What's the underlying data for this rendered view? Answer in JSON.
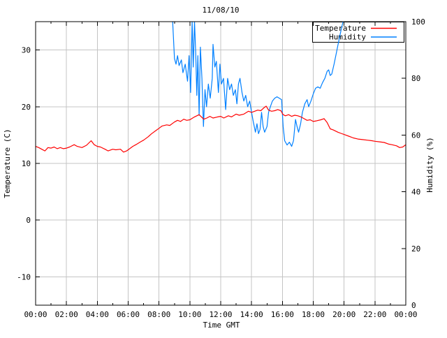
{
  "title": "11/08/10",
  "axes": {
    "x_label": "Time GMT",
    "y_left_label": "Temperature (C)",
    "y_right_label": "Humidity (%)",
    "x_tick_labels": [
      "00:00",
      "02:00",
      "04:00",
      "06:00",
      "08:00",
      "10:00",
      "12:00",
      "14:00",
      "16:00",
      "18:00",
      "20:00",
      "22:00",
      "00:00"
    ],
    "x_major_step_hours": 2,
    "x_minor_step_hours": 1,
    "y_left_ticks": [
      -10,
      0,
      10,
      20,
      30
    ],
    "y_right_ticks": [
      0,
      20,
      40,
      60,
      80,
      100
    ],
    "x_range_hours": [
      0,
      24
    ],
    "y_left_range": [
      -15,
      35
    ],
    "y_right_range": [
      0,
      100
    ],
    "grid": true,
    "legend_position": "top-right-inside-boxed"
  },
  "legend": {
    "entries": [
      {
        "label": "Temperature",
        "color": "#ff0000"
      },
      {
        "label": "Humidity",
        "color": "#0080ff"
      }
    ]
  },
  "colors": {
    "background": "#ffffff",
    "border": "#000000",
    "grid": "#c4c4c4",
    "text": "#000000",
    "temperature": "#ff0000",
    "humidity": "#0080ff"
  },
  "chart_data": {
    "type": "line",
    "title": "11/08/10",
    "xlabel": "Time GMT",
    "ylabel_left": "Temperature (C)",
    "ylabel_right": "Humidity (%)",
    "x_unit": "hours GMT on 11/08/10",
    "series": [
      {
        "name": "Temperature",
        "axis": "left",
        "units": "C",
        "color": "#ff0000",
        "points": [
          [
            0.0,
            13.0
          ],
          [
            0.2,
            12.8
          ],
          [
            0.4,
            12.5
          ],
          [
            0.6,
            12.2
          ],
          [
            0.8,
            12.8
          ],
          [
            1.0,
            12.7
          ],
          [
            1.2,
            12.9
          ],
          [
            1.4,
            12.6
          ],
          [
            1.6,
            12.8
          ],
          [
            1.8,
            12.6
          ],
          [
            2.0,
            12.7
          ],
          [
            2.2,
            12.9
          ],
          [
            2.5,
            13.3
          ],
          [
            2.7,
            13.0
          ],
          [
            3.0,
            12.8
          ],
          [
            3.3,
            13.2
          ],
          [
            3.6,
            14.0
          ],
          [
            3.8,
            13.3
          ],
          [
            4.0,
            13.0
          ],
          [
            4.2,
            12.9
          ],
          [
            4.5,
            12.5
          ],
          [
            4.7,
            12.2
          ],
          [
            5.0,
            12.5
          ],
          [
            5.2,
            12.4
          ],
          [
            5.5,
            12.5
          ],
          [
            5.7,
            12.0
          ],
          [
            5.9,
            12.2
          ],
          [
            6.1,
            12.6
          ],
          [
            6.3,
            13.0
          ],
          [
            6.5,
            13.3
          ],
          [
            6.8,
            13.8
          ],
          [
            7.0,
            14.1
          ],
          [
            7.3,
            14.7
          ],
          [
            7.5,
            15.2
          ],
          [
            7.8,
            15.8
          ],
          [
            8.0,
            16.2
          ],
          [
            8.2,
            16.6
          ],
          [
            8.5,
            16.8
          ],
          [
            8.7,
            16.7
          ],
          [
            9.0,
            17.3
          ],
          [
            9.2,
            17.6
          ],
          [
            9.4,
            17.4
          ],
          [
            9.6,
            17.8
          ],
          [
            9.8,
            17.6
          ],
          [
            10.0,
            17.7
          ],
          [
            10.3,
            18.2
          ],
          [
            10.6,
            18.6
          ],
          [
            10.9,
            17.8
          ],
          [
            11.1,
            18.0
          ],
          [
            11.3,
            18.3
          ],
          [
            11.5,
            18.0
          ],
          [
            11.8,
            18.2
          ],
          [
            12.0,
            18.3
          ],
          [
            12.2,
            18.0
          ],
          [
            12.5,
            18.4
          ],
          [
            12.7,
            18.2
          ],
          [
            13.0,
            18.7
          ],
          [
            13.2,
            18.5
          ],
          [
            13.5,
            18.7
          ],
          [
            13.8,
            19.2
          ],
          [
            14.0,
            19.0
          ],
          [
            14.2,
            19.2
          ],
          [
            14.4,
            19.4
          ],
          [
            14.6,
            19.3
          ],
          [
            14.8,
            19.8
          ],
          [
            14.95,
            20.1
          ],
          [
            15.1,
            19.4
          ],
          [
            15.3,
            19.2
          ],
          [
            15.5,
            19.3
          ],
          [
            15.7,
            19.5
          ],
          [
            15.9,
            19.3
          ],
          [
            16.05,
            18.6
          ],
          [
            16.2,
            18.4
          ],
          [
            16.4,
            18.6
          ],
          [
            16.6,
            18.3
          ],
          [
            16.8,
            18.5
          ],
          [
            17.0,
            18.4
          ],
          [
            17.2,
            18.2
          ],
          [
            17.4,
            17.9
          ],
          [
            17.6,
            17.6
          ],
          [
            17.8,
            17.7
          ],
          [
            18.0,
            17.4
          ],
          [
            18.2,
            17.5
          ],
          [
            18.5,
            17.7
          ],
          [
            18.7,
            17.9
          ],
          [
            18.9,
            17.2
          ],
          [
            19.1,
            16.1
          ],
          [
            19.3,
            15.9
          ],
          [
            19.6,
            15.5
          ],
          [
            19.8,
            15.3
          ],
          [
            20.0,
            15.1
          ],
          [
            20.3,
            14.8
          ],
          [
            20.6,
            14.5
          ],
          [
            20.9,
            14.3
          ],
          [
            21.2,
            14.2
          ],
          [
            21.5,
            14.1
          ],
          [
            21.8,
            14.0
          ],
          [
            22.0,
            13.9
          ],
          [
            22.3,
            13.8
          ],
          [
            22.6,
            13.7
          ],
          [
            22.9,
            13.4
          ],
          [
            23.1,
            13.3
          ],
          [
            23.4,
            13.1
          ],
          [
            23.6,
            12.8
          ],
          [
            23.8,
            12.9
          ],
          [
            24.0,
            13.3
          ]
        ]
      },
      {
        "name": "Humidity",
        "axis": "right",
        "units": "%",
        "color": "#0080ff",
        "points": [
          [
            8.85,
            104
          ],
          [
            8.92,
            96
          ],
          [
            9.0,
            87
          ],
          [
            9.1,
            85
          ],
          [
            9.2,
            88
          ],
          [
            9.3,
            84.5
          ],
          [
            9.45,
            86.5
          ],
          [
            9.55,
            82
          ],
          [
            9.7,
            85
          ],
          [
            9.85,
            79
          ],
          [
            9.95,
            88
          ],
          [
            10.05,
            75
          ],
          [
            10.15,
            100
          ],
          [
            10.22,
            84
          ],
          [
            10.3,
            100
          ],
          [
            10.38,
            89
          ],
          [
            10.45,
            74
          ],
          [
            10.52,
            88
          ],
          [
            10.6,
            67
          ],
          [
            10.68,
            91
          ],
          [
            10.78,
            80
          ],
          [
            10.88,
            63
          ],
          [
            10.98,
            76
          ],
          [
            11.08,
            70
          ],
          [
            11.2,
            78
          ],
          [
            11.32,
            73
          ],
          [
            11.45,
            80
          ],
          [
            11.5,
            92
          ],
          [
            11.62,
            84
          ],
          [
            11.72,
            86
          ],
          [
            11.85,
            75
          ],
          [
            11.95,
            85
          ],
          [
            12.05,
            78
          ],
          [
            12.18,
            80
          ],
          [
            12.32,
            69
          ],
          [
            12.45,
            80
          ],
          [
            12.58,
            76
          ],
          [
            12.7,
            78
          ],
          [
            12.82,
            74
          ],
          [
            12.95,
            76
          ],
          [
            13.05,
            71
          ],
          [
            13.15,
            78
          ],
          [
            13.25,
            80
          ],
          [
            13.38,
            75
          ],
          [
            13.5,
            72
          ],
          [
            13.62,
            74
          ],
          [
            13.75,
            70
          ],
          [
            13.88,
            72
          ],
          [
            14.0,
            68
          ],
          [
            14.1,
            65
          ],
          [
            14.25,
            61
          ],
          [
            14.35,
            64
          ],
          [
            14.45,
            60.5
          ],
          [
            14.55,
            62
          ],
          [
            14.65,
            68
          ],
          [
            14.75,
            63
          ],
          [
            14.85,
            61
          ],
          [
            15.0,
            63
          ],
          [
            15.1,
            68
          ],
          [
            15.22,
            70
          ],
          [
            15.35,
            72
          ],
          [
            15.5,
            73
          ],
          [
            15.65,
            73.5
          ],
          [
            15.8,
            73
          ],
          [
            15.95,
            72.5
          ],
          [
            16.05,
            63
          ],
          [
            16.15,
            58
          ],
          [
            16.3,
            56.5
          ],
          [
            16.45,
            57.5
          ],
          [
            16.6,
            56
          ],
          [
            16.72,
            58
          ],
          [
            16.85,
            65.5
          ],
          [
            16.95,
            63
          ],
          [
            17.05,
            61
          ],
          [
            17.18,
            64
          ],
          [
            17.3,
            68
          ],
          [
            17.45,
            71
          ],
          [
            17.6,
            72.5
          ],
          [
            17.7,
            70
          ],
          [
            17.85,
            72
          ],
          [
            18.0,
            74.5
          ],
          [
            18.15,
            76.5
          ],
          [
            18.3,
            77
          ],
          [
            18.45,
            76.5
          ],
          [
            18.6,
            78.5
          ],
          [
            18.75,
            80
          ],
          [
            18.9,
            82.5
          ],
          [
            19.0,
            83
          ],
          [
            19.1,
            81
          ],
          [
            19.2,
            81.5
          ],
          [
            19.35,
            85
          ],
          [
            19.5,
            89
          ],
          [
            19.65,
            93
          ],
          [
            19.8,
            97
          ],
          [
            19.95,
            100.5
          ],
          [
            24.0,
            100.5
          ]
        ]
      }
    ]
  }
}
